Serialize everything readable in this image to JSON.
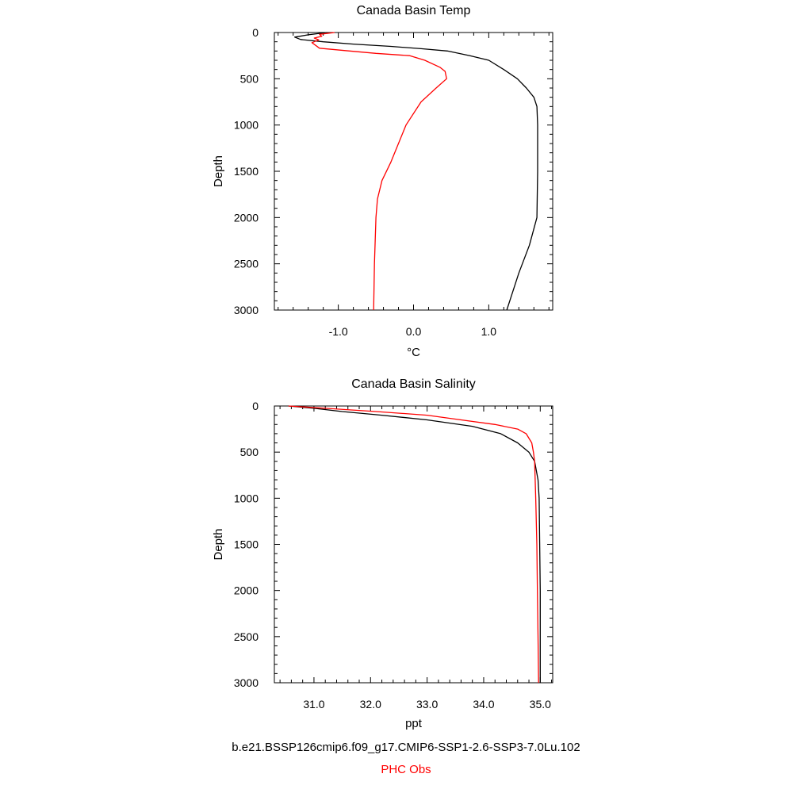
{
  "chart_data": [
    {
      "type": "line",
      "title": "Canada Basin Temp",
      "xlabel": "°C",
      "ylabel": "Depth",
      "xlim": [
        -1.85,
        1.85
      ],
      "ylim": [
        3000,
        0
      ],
      "y_inverted": true,
      "xticks": [
        -1.0,
        0.0,
        1.0
      ],
      "xtick_labels": [
        "-1.0",
        "0.0",
        "1.0"
      ],
      "yticks": [
        0,
        500,
        1000,
        1500,
        2000,
        2500,
        3000
      ],
      "ytick_labels": [
        "0",
        "500",
        "1000",
        "1500",
        "2000",
        "2500",
        "3000"
      ],
      "series": [
        {
          "name": "b.e21.BSSP126cmip6.f09_g17.CMIP6-SSP1-2.6-SSP3-7.0Lu.102",
          "color": "#000000",
          "points": [
            [
              -1.15,
              0
            ],
            [
              -1.4,
              25
            ],
            [
              -1.58,
              50
            ],
            [
              -1.5,
              75
            ],
            [
              -1.2,
              100
            ],
            [
              -0.8,
              125
            ],
            [
              -0.3,
              150
            ],
            [
              0.1,
              175
            ],
            [
              0.45,
              200
            ],
            [
              0.75,
              250
            ],
            [
              1.0,
              300
            ],
            [
              1.2,
              400
            ],
            [
              1.38,
              500
            ],
            [
              1.5,
              600
            ],
            [
              1.6,
              700
            ],
            [
              1.64,
              800
            ],
            [
              1.65,
              1000
            ],
            [
              1.65,
              1500
            ],
            [
              1.64,
              2000
            ],
            [
              1.54,
              2300
            ],
            [
              1.4,
              2600
            ],
            [
              1.24,
              3000
            ]
          ]
        },
        {
          "name": "PHC Obs",
          "color": "#ff0000",
          "points": [
            [
              -1.05,
              0
            ],
            [
              -1.25,
              20
            ],
            [
              -1.22,
              40
            ],
            [
              -1.32,
              60
            ],
            [
              -1.26,
              80
            ],
            [
              -1.35,
              110
            ],
            [
              -1.3,
              140
            ],
            [
              -1.25,
              170
            ],
            [
              -0.85,
              200
            ],
            [
              -0.5,
              225
            ],
            [
              -0.05,
              250
            ],
            [
              0.15,
              300
            ],
            [
              0.35,
              375
            ],
            [
              0.42,
              420
            ],
            [
              0.44,
              500
            ],
            [
              0.3,
              600
            ],
            [
              0.1,
              750
            ],
            [
              -0.1,
              1000
            ],
            [
              -0.3,
              1400
            ],
            [
              -0.42,
              1600
            ],
            [
              -0.48,
              1800
            ],
            [
              -0.5,
              2000
            ],
            [
              -0.52,
              2500
            ],
            [
              -0.53,
              3000
            ]
          ]
        }
      ]
    },
    {
      "type": "line",
      "title": "Canada Basin Salinity",
      "xlabel": "ppt",
      "ylabel": "Depth",
      "xlim": [
        30.3,
        35.22
      ],
      "ylim": [
        3000,
        0
      ],
      "y_inverted": true,
      "xticks": [
        31.0,
        32.0,
        33.0,
        34.0,
        35.0
      ],
      "xtick_labels": [
        "31.0",
        "32.0",
        "33.0",
        "34.0",
        "35.0"
      ],
      "yticks": [
        0,
        500,
        1000,
        1500,
        2000,
        2500,
        3000
      ],
      "ytick_labels": [
        "0",
        "500",
        "1000",
        "1500",
        "2000",
        "2500",
        "3000"
      ],
      "series": [
        {
          "name": "b.e21.BSSP126cmip6.f09_g17.CMIP6-SSP1-2.6-SSP3-7.0Lu.102",
          "color": "#000000",
          "points": [
            [
              30.55,
              0
            ],
            [
              31.0,
              25
            ],
            [
              31.5,
              60
            ],
            [
              32.2,
              100
            ],
            [
              33.0,
              150
            ],
            [
              33.8,
              220
            ],
            [
              34.3,
              300
            ],
            [
              34.6,
              400
            ],
            [
              34.8,
              500
            ],
            [
              34.9,
              600
            ],
            [
              34.96,
              800
            ],
            [
              34.98,
              1000
            ],
            [
              34.99,
              1500
            ],
            [
              35.0,
              2000
            ],
            [
              35.0,
              3000
            ]
          ]
        },
        {
          "name": "PHC Obs",
          "color": "#ff0000",
          "points": [
            [
              30.55,
              0
            ],
            [
              31.2,
              25
            ],
            [
              32.1,
              60
            ],
            [
              33.0,
              100
            ],
            [
              33.6,
              150
            ],
            [
              34.2,
              200
            ],
            [
              34.6,
              250
            ],
            [
              34.75,
              300
            ],
            [
              34.85,
              400
            ],
            [
              34.88,
              500
            ],
            [
              34.9,
              600
            ],
            [
              34.92,
              1000
            ],
            [
              34.94,
              1500
            ],
            [
              34.95,
              2000
            ],
            [
              34.96,
              2500
            ],
            [
              34.97,
              3000
            ]
          ]
        }
      ]
    }
  ],
  "legend": {
    "model_label": "b.e21.BSSP126cmip6.f09_g17.CMIP6-SSP1-2.6-SSP3-7.0Lu.102",
    "model_color": "#000000",
    "obs_label": "PHC Obs",
    "obs_color": "#ff0000"
  }
}
